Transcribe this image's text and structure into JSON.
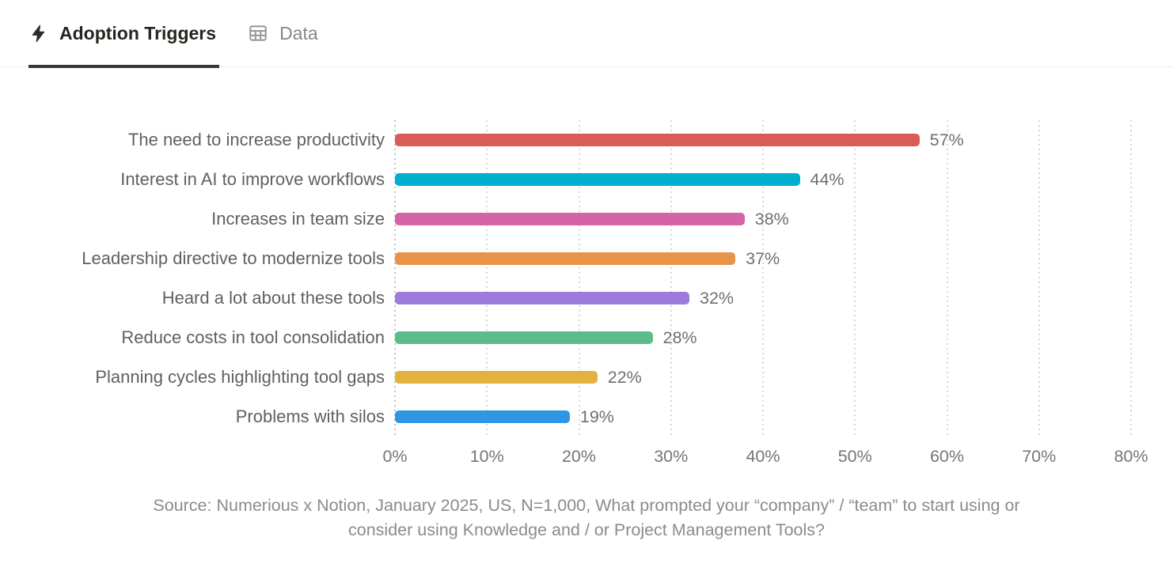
{
  "tabs": [
    {
      "label": "Adoption Triggers",
      "icon": "lightning-bolt-icon",
      "active": true
    },
    {
      "label": "Data",
      "icon": "table-icon",
      "active": false
    }
  ],
  "chart_data": {
    "type": "bar",
    "orientation": "horizontal",
    "title": "Adoption Triggers",
    "categories": [
      "The need to increase productivity",
      "Interest in AI to improve workflows",
      "Increases in team size",
      "Leadership directive to modernize tools",
      "Heard a lot about these tools",
      "Reduce costs in tool consolidation",
      "Planning cycles highlighting tool gaps",
      "Problems with silos"
    ],
    "values": [
      57,
      44,
      38,
      37,
      32,
      28,
      22,
      19
    ],
    "value_labels": [
      "57%",
      "44%",
      "38%",
      "37%",
      "32%",
      "28%",
      "22%",
      "19%"
    ],
    "bar_colors": [
      "#DB5B57",
      "#00AECD",
      "#D662A7",
      "#E8924A",
      "#9C7BDB",
      "#5CBD8A",
      "#E3B23E",
      "#2F96E3"
    ],
    "x_ticks": [
      "0%",
      "10%",
      "20%",
      "30%",
      "40%",
      "50%",
      "60%",
      "70%",
      "80%"
    ],
    "xlim": [
      0,
      80
    ],
    "grid": "dotted vertical gridlines every 10%, darker dotted line at 0%",
    "legend": "none",
    "colors": {
      "category_label": "#606060",
      "value_label": "#6f6f6f",
      "tick_label": "#757575",
      "gridline": "#d7d7d7",
      "zero_line": "#c2c2c2"
    }
  },
  "source": {
    "lines": [
      "Source: Numerious x Notion, January 2025, US, N=1,000, What prompted your “company” / “team” to start using or",
      "consider using Knowledge and / or Project Management Tools?"
    ]
  }
}
